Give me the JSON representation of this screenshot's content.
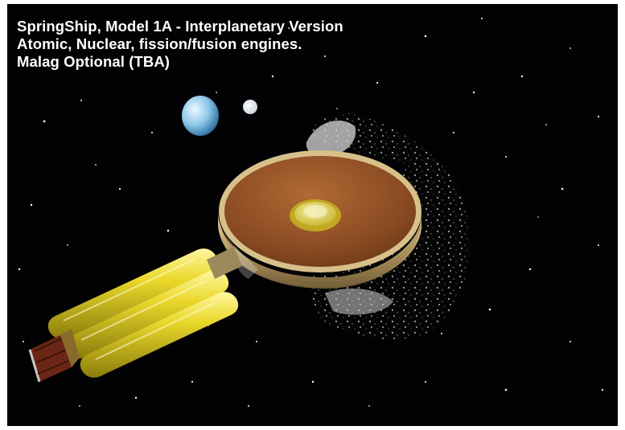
{
  "caption": {
    "line1": "SpringShip, Model 1A - Interplanetary Version",
    "line2": "Atomic, Nuclear, fission/fusion engines.",
    "line3": "Malag Optional (TBA)"
  },
  "colors": {
    "space": "#020205",
    "planet": "#bfe3f7",
    "hull_top": "#9a5a2c",
    "hull_rim": "#c7ae7a",
    "dome": "#e6df6a",
    "tanks": "#e7dc2a",
    "nozzle": "#6b2616"
  },
  "scene": {
    "objects": [
      "planet",
      "moon",
      "asteroid-cloud",
      "spaceship-disc",
      "fuel-tanks",
      "engine-nozzle"
    ]
  }
}
